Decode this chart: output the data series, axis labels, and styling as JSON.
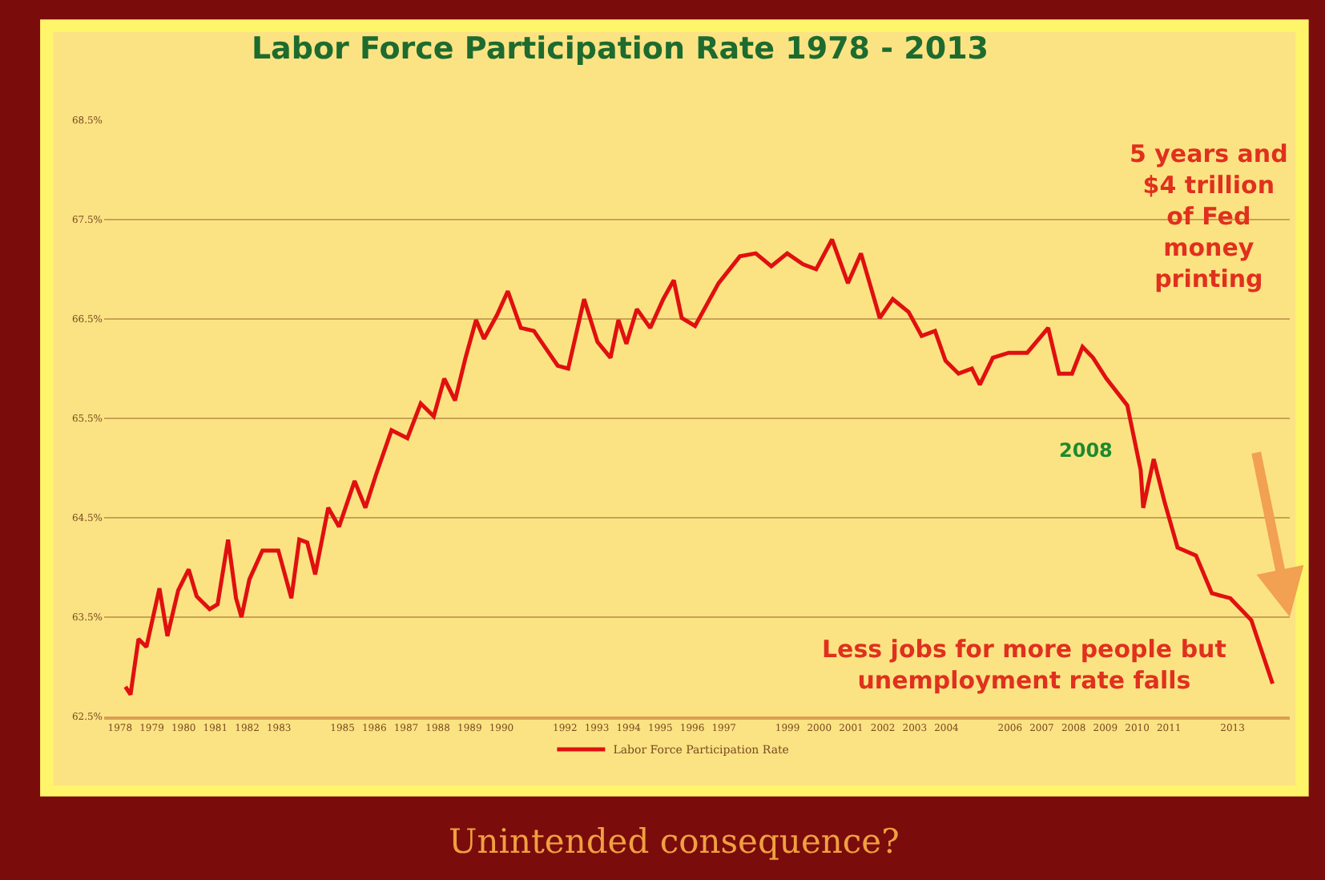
{
  "chart_data": {
    "type": "line",
    "title": "Labor Force Participation Rate 1978 - 2013",
    "x": [
      1978.17,
      1978.33,
      1978.58,
      1978.83,
      1979.24,
      1979.49,
      1979.83,
      1980.16,
      1980.41,
      1980.82,
      1981.07,
      1981.4,
      1981.65,
      1981.82,
      1982.07,
      1982.48,
      1982.98,
      1983.39,
      1983.64,
      1983.89,
      1984.14,
      1984.55,
      1984.89,
      1985.38,
      1985.72,
      1986.05,
      1986.54,
      1987.04,
      1987.46,
      1987.87,
      1988.2,
      1988.54,
      1988.87,
      1989.2,
      1989.45,
      1989.86,
      1990.2,
      1990.61,
      1991.02,
      1991.36,
      1991.77,
      1992.1,
      1992.6,
      1993.02,
      1993.43,
      1993.68,
      1993.93,
      1994.26,
      1994.68,
      1995.09,
      1995.42,
      1995.67,
      1996.09,
      1996.83,
      1997.5,
      1998.0,
      1998.49,
      1998.99,
      1999.49,
      1999.9,
      2000.4,
      2000.9,
      2001.31,
      2001.73,
      2001.9,
      2002.31,
      2002.81,
      2003.22,
      2003.64,
      2003.97,
      2004.38,
      2004.8,
      2005.05,
      2005.46,
      2005.96,
      2006.54,
      2007.2,
      2007.54,
      2007.95,
      2008.28,
      2008.61,
      2009.03,
      2009.69,
      2010.11,
      2010.19,
      2010.52,
      2010.86,
      2011.27,
      2011.85,
      2012.35,
      2012.93,
      2013.59,
      2014.26
    ],
    "series": [
      {
        "name": "Labor Force Participation Rate",
        "color": "#e01010",
        "values": [
          62.8,
          62.72,
          63.28,
          63.2,
          63.79,
          63.31,
          63.77,
          63.98,
          63.71,
          63.58,
          63.63,
          64.28,
          63.69,
          63.5,
          63.88,
          64.17,
          64.17,
          63.69,
          64.28,
          64.25,
          63.93,
          64.6,
          64.41,
          64.87,
          64.6,
          64.93,
          65.38,
          65.3,
          65.65,
          65.52,
          65.9,
          65.68,
          66.11,
          66.49,
          66.3,
          66.54,
          66.78,
          66.41,
          66.38,
          66.22,
          66.03,
          66.0,
          66.7,
          66.27,
          66.11,
          66.49,
          66.25,
          66.6,
          66.41,
          66.7,
          66.89,
          66.51,
          66.43,
          66.86,
          67.13,
          67.16,
          67.03,
          67.16,
          67.05,
          67.0,
          67.3,
          66.86,
          67.16,
          66.7,
          66.51,
          66.7,
          66.57,
          66.33,
          66.38,
          66.08,
          65.95,
          66.0,
          65.84,
          66.11,
          66.16,
          66.16,
          66.41,
          65.95,
          65.95,
          66.22,
          66.11,
          65.9,
          65.63,
          64.98,
          64.6,
          65.09,
          64.66,
          64.2,
          64.12,
          63.74,
          63.69,
          63.47,
          62.83
        ]
      }
    ],
    "xlim": [
      1977.5,
      2014.8
    ],
    "xticks": [
      1978,
      1979,
      1980,
      1981,
      1982,
      1983,
      1985,
      1986,
      1987,
      1988,
      1989,
      1990,
      1992,
      1993,
      1994,
      1995,
      1996,
      1997,
      1999,
      2000,
      2001,
      2002,
      2003,
      2004,
      2006,
      2007,
      2008,
      2009,
      2010,
      2011,
      2013
    ],
    "ylim": [
      62.5,
      68.5
    ],
    "yticks": [
      {
        "value": 62.5,
        "label": "62.5%"
      },
      {
        "value": 63.5,
        "label": "63.5%"
      },
      {
        "value": 64.5,
        "label": "64.5%"
      },
      {
        "value": 65.5,
        "label": "65.5%"
      },
      {
        "value": 66.5,
        "label": "66.5%"
      },
      {
        "value": 67.5,
        "label": "67.5%"
      },
      {
        "value": 68.5,
        "label": "68.5%"
      }
    ],
    "grid": "y",
    "legend": "bottom",
    "marker": "none",
    "line_style": "solid",
    "annotations": [
      "5 years and\n$4 trillion\nof Fed\nmoney\nprinting",
      "2008",
      "Less jobs for more people but\nunemployment rate falls",
      "Unintended consequence?"
    ]
  }
}
